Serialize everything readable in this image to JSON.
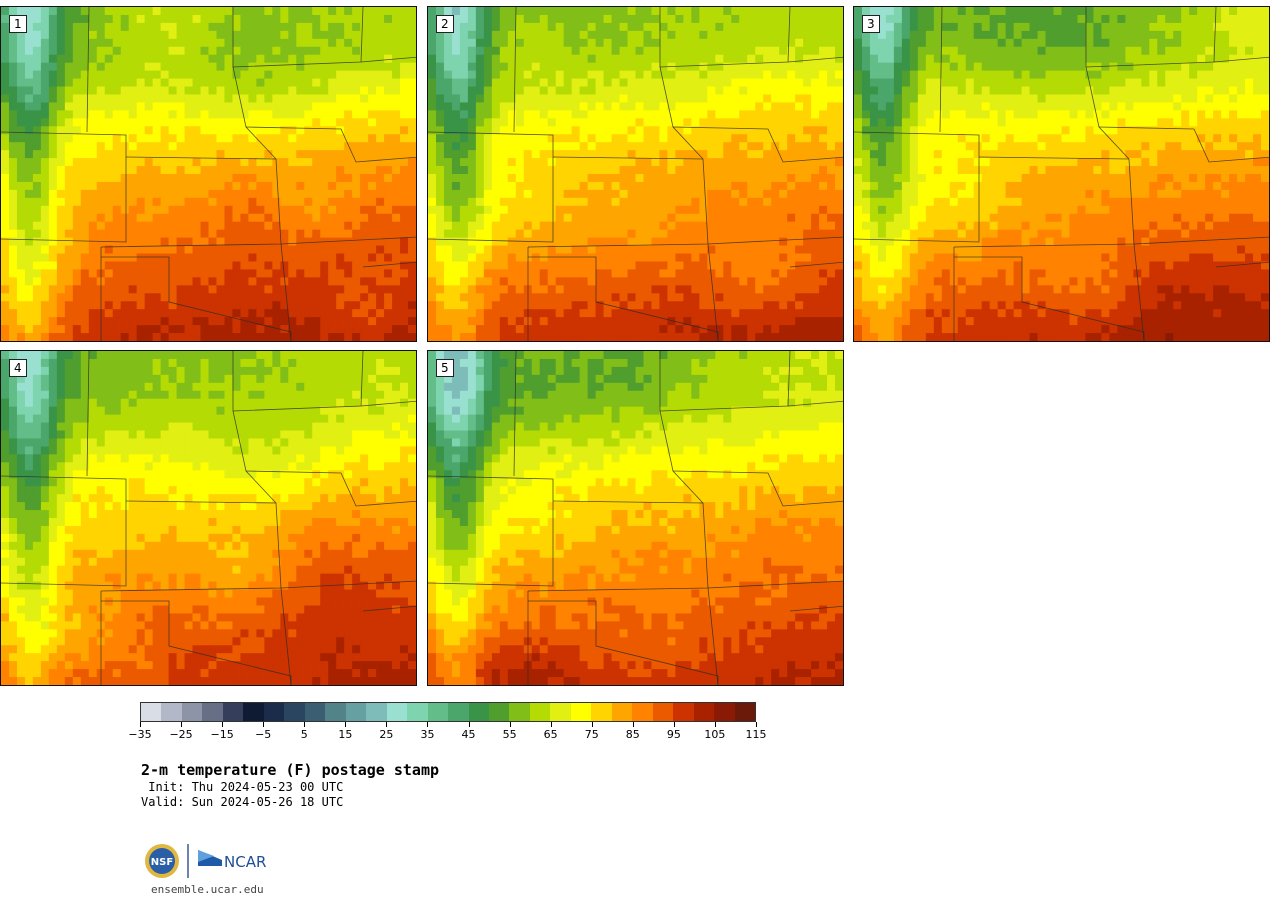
{
  "panels": [
    {
      "label": "1",
      "warmth": 0.85
    },
    {
      "label": "2",
      "warmth": 0.72
    },
    {
      "label": "3",
      "warmth": 0.7
    },
    {
      "label": "4",
      "warmth": 0.55
    },
    {
      "label": "5",
      "warmth": 0.5
    }
  ],
  "colorbar": {
    "colors": [
      "#d9dde6",
      "#b3b8c9",
      "#8d94a8",
      "#676f87",
      "#353f5c",
      "#0f1a33",
      "#1a2c4a",
      "#2a4560",
      "#3c5e73",
      "#518388",
      "#67a0a2",
      "#7dbcb8",
      "#99e0d0",
      "#7ed4ae",
      "#62bd88",
      "#4aa66a",
      "#3a9447",
      "#4f9e2e",
      "#82be18",
      "#b5db05",
      "#e2ef12",
      "#ffff00",
      "#ffd400",
      "#ffa500",
      "#ff8200",
      "#ec5a00",
      "#cc3300",
      "#a82200",
      "#8a1a06",
      "#6b1a0a"
    ],
    "tick_labels": [
      "−35",
      "−25",
      "−15",
      "−5",
      "5",
      "15",
      "25",
      "35",
      "45",
      "55",
      "65",
      "75",
      "85",
      "95",
      "105",
      "115"
    ],
    "min": -35,
    "step": 5
  },
  "title": "2-m temperature (F) postage stamp",
  "init": " Init: Thu 2024-05-23 00 UTC",
  "valid": "Valid: Sun 2024-05-26 18 UTC",
  "logos": [
    "NSF",
    "NCAR"
  ],
  "site": "ensemble.ucar.edu"
}
